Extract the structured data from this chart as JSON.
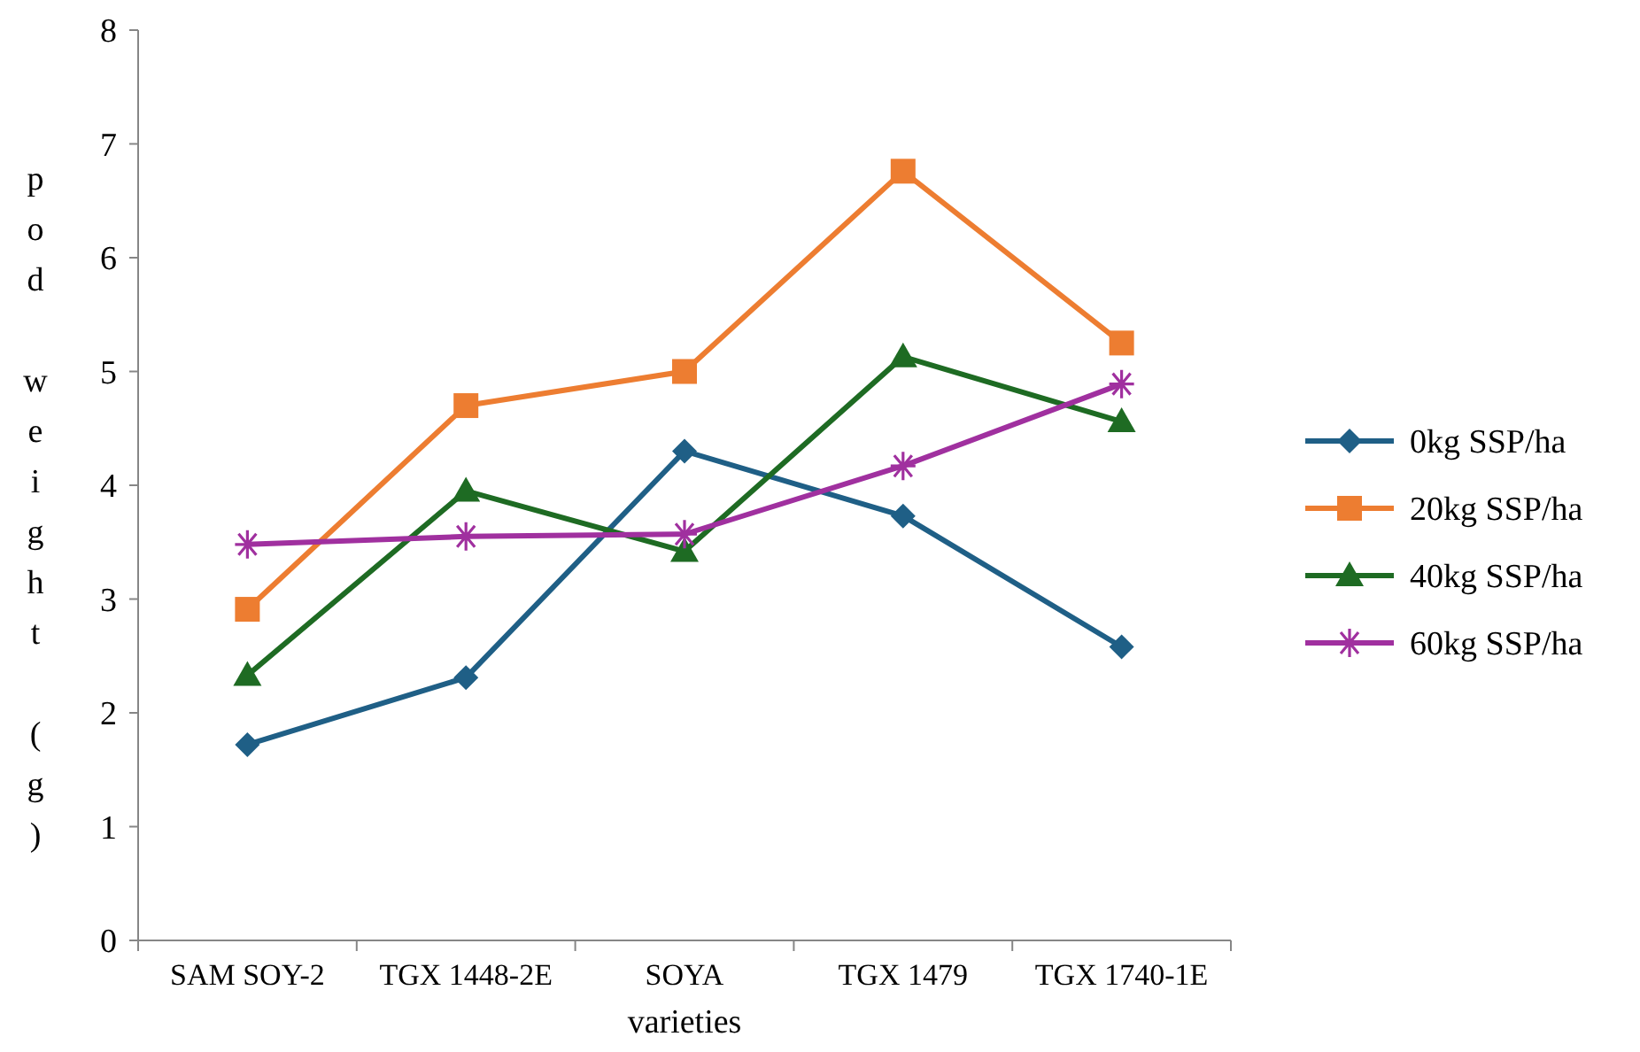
{
  "chart_data": {
    "type": "line",
    "xlabel": "varieties",
    "ylabel": "pod weight (g)",
    "categories": [
      "SAM SOY-2",
      "TGX 1448-2E",
      "SOYA",
      "TGX 1479",
      "TGX 1740-1E"
    ],
    "series": [
      {
        "name": "0kg SSP/ha",
        "color": "#1f5f86",
        "marker": "diamond",
        "values": [
          1.72,
          2.31,
          4.3,
          3.73,
          2.58
        ]
      },
      {
        "name": "20kg SSP/ha",
        "color": "#ed7d31",
        "marker": "square",
        "values": [
          2.91,
          4.7,
          5.0,
          6.76,
          5.25
        ]
      },
      {
        "name": "40kg SSP/ha",
        "color": "#1e6b23",
        "marker": "triangle",
        "values": [
          2.33,
          3.95,
          3.42,
          5.13,
          4.56
        ]
      },
      {
        "name": "60kg SSP/ha",
        "color": "#a0309f",
        "marker": "cross",
        "values": [
          3.48,
          3.55,
          3.57,
          4.17,
          4.89
        ]
      }
    ],
    "ylim": [
      0,
      8
    ],
    "yticks": [
      0,
      1,
      2,
      3,
      4,
      5,
      6,
      7,
      8
    ],
    "grid": false,
    "legend": "right",
    "line_style": "solid"
  }
}
